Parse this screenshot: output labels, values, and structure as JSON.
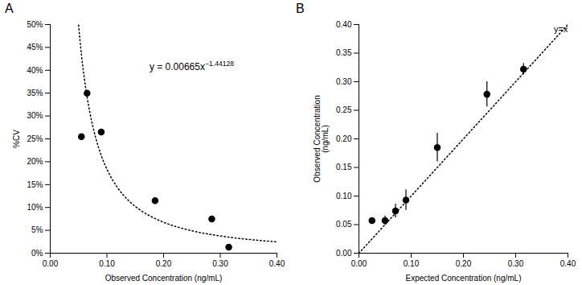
{
  "chart_data": [
    {
      "type": "scatter",
      "title": "A",
      "x": [
        0.055,
        0.065,
        0.09,
        0.185,
        0.285,
        0.315
      ],
      "values": [
        0.255,
        0.35,
        0.265,
        0.115,
        0.075,
        0.013
      ],
      "color": "#000000",
      "marker": "circle",
      "fit": {
        "type": "line",
        "color": "#000000",
        "line_style": "dotted",
        "x": [
          0.05,
          0.055,
          0.06,
          0.07,
          0.08,
          0.09,
          0.1,
          0.12,
          0.14,
          0.16,
          0.18,
          0.2,
          0.25,
          0.3,
          0.35,
          0.4
        ],
        "values": [
          0.49885,
          0.43482,
          0.38357,
          0.30716,
          0.25338,
          0.21382,
          0.1837,
          0.14125,
          0.11311,
          0.09331,
          0.07874,
          0.06764,
          0.04904,
          0.03771,
          0.0302,
          0.02491
        ]
      },
      "annotations": [
        {
          "text": "y = 0.00665x",
          "superscript": "−1.44128",
          "x": 0.175,
          "y": 0.415
        }
      ],
      "xlabel": "Observed Concentration (ng/mL)",
      "ylabel": "%CV",
      "xlim": [
        0.0,
        0.4
      ],
      "ylim": [
        0.0,
        0.5
      ],
      "xticks": [
        {
          "value": 0.0,
          "label": "0.00"
        },
        {
          "value": 0.1,
          "label": "0.10"
        },
        {
          "value": 0.2,
          "label": "0.20"
        },
        {
          "value": 0.3,
          "label": "0.30"
        },
        {
          "value": 0.4,
          "label": "0.40"
        }
      ],
      "yticks": [
        {
          "value": 0.0,
          "label": "0%"
        },
        {
          "value": 0.05,
          "label": "5%"
        },
        {
          "value": 0.1,
          "label": "10%"
        },
        {
          "value": 0.15,
          "label": "15%"
        },
        {
          "value": 0.2,
          "label": "20%"
        },
        {
          "value": 0.25,
          "label": "25%"
        },
        {
          "value": 0.3,
          "label": "30%"
        },
        {
          "value": 0.35,
          "label": "35%"
        },
        {
          "value": 0.4,
          "label": "40%"
        },
        {
          "value": 0.45,
          "label": "45%"
        },
        {
          "value": 0.5,
          "label": "50%"
        }
      ],
      "grid": false
    },
    {
      "type": "scatter",
      "title": "B",
      "x": [
        0.025,
        0.05,
        0.07,
        0.09,
        0.15,
        0.245,
        0.315
      ],
      "values": [
        0.057,
        0.057,
        0.074,
        0.093,
        0.185,
        0.278,
        0.322
      ],
      "yerr": [
        0.005,
        0.008,
        0.012,
        0.018,
        0.025,
        0.022,
        0.01
      ],
      "color": "#000000",
      "marker": "circle",
      "reference_line": {
        "type": "line",
        "label": "y=x",
        "color": "#000000",
        "line_style": "dotted",
        "x": [
          0.0,
          0.4
        ],
        "values": [
          0.0,
          0.4
        ]
      },
      "xlabel": "Expected Concentration (ng/mL)",
      "ylabel": "Observed Concentration\n(ng/mL)",
      "xlim": [
        0.0,
        0.4
      ],
      "ylim": [
        0.0,
        0.4
      ],
      "xticks": [
        {
          "value": 0.0,
          "label": "0.00"
        },
        {
          "value": 0.1,
          "label": "0.10"
        },
        {
          "value": 0.2,
          "label": "0.20"
        },
        {
          "value": 0.3,
          "label": "0.30"
        },
        {
          "value": 0.4,
          "label": "0.40"
        }
      ],
      "yticks": [
        {
          "value": 0.0,
          "label": "0.00"
        },
        {
          "value": 0.05,
          "label": "0.05"
        },
        {
          "value": 0.1,
          "label": "0.10"
        },
        {
          "value": 0.15,
          "label": "0.15"
        },
        {
          "value": 0.2,
          "label": "0.20"
        },
        {
          "value": 0.25,
          "label": "0.25"
        },
        {
          "value": 0.3,
          "label": "0.30"
        },
        {
          "value": 0.35,
          "label": "0.35"
        },
        {
          "value": 0.4,
          "label": "0.40"
        }
      ],
      "grid": false
    }
  ]
}
